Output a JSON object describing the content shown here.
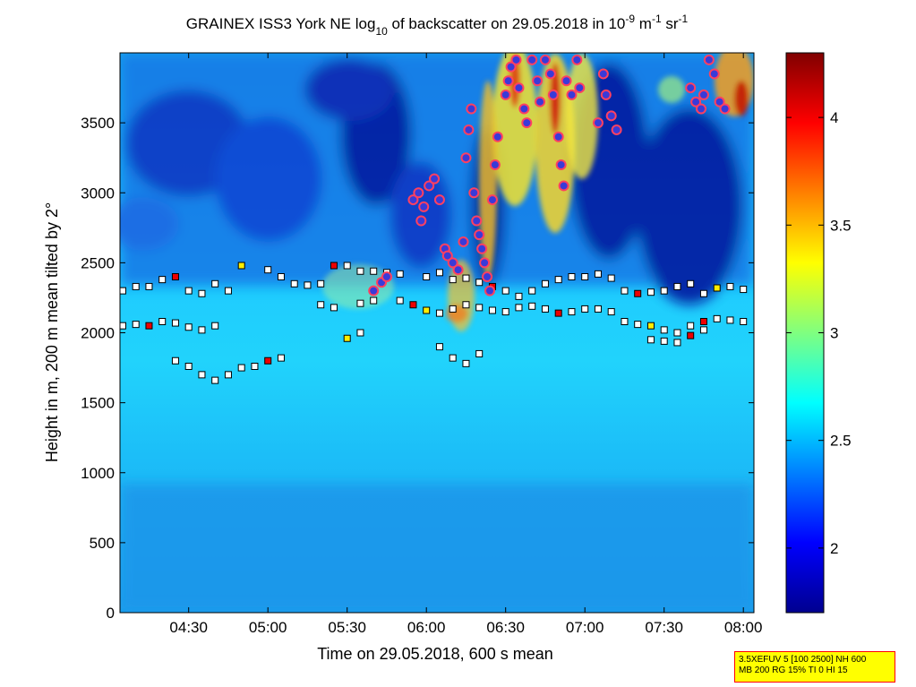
{
  "chart_data": {
    "type": "heatmap",
    "title": {
      "prefix": "GRAINEX ISS3 York NE log",
      "sub": "10",
      "middle": " of backscatter on 29.05.2018 in 10",
      "sup1": "-9",
      "unit_m": " m",
      "sup2": "-1",
      "unit_sr": " sr",
      "sup3": "-1"
    },
    "xlabel": "Time on 29.05.2018, 600 s mean",
    "ylabel": "Height in m, 200 m mean tilted by 2°",
    "xlim": [
      "04:04",
      "08:04"
    ],
    "ylim": [
      0,
      4000
    ],
    "x_ticks": [
      "04:30",
      "05:00",
      "05:30",
      "06:00",
      "06:30",
      "07:00",
      "07:30",
      "08:00"
    ],
    "y_ticks": [
      0,
      500,
      1000,
      1500,
      2000,
      2500,
      3000,
      3500
    ],
    "colorbar": {
      "colormap": "jet",
      "range": [
        1.7,
        4.3
      ],
      "ticks": [
        "2",
        "2.5",
        "3",
        "3.5",
        "4"
      ]
    },
    "colors": {
      "background_field": "#1ec8ff",
      "low_region": "#1e9ff0",
      "dark_region": "#06109a",
      "cloud": "#fbe11e",
      "cloud_core": "#c00000",
      "marker_fill": "#ffffff",
      "marker_edge": "#000000",
      "marker_red": "#ee0000",
      "marker_yellow": "#ffee00",
      "circle_fill": "#3a3ad8",
      "circle_edge": "#ff4060"
    },
    "series": [
      {
        "marker": "square",
        "points": [
          [
            "04:05",
            2300
          ],
          [
            "04:10",
            2330
          ],
          [
            "04:15",
            2330
          ],
          [
            "04:20",
            2380
          ],
          [
            "04:25",
            2400
          ],
          [
            "04:30",
            2300
          ],
          [
            "04:35",
            2280
          ],
          [
            "04:40",
            2350
          ],
          [
            "04:45",
            2300
          ],
          [
            "04:50",
            2480
          ],
          [
            "05:00",
            2450
          ],
          [
            "05:05",
            2400
          ],
          [
            "05:10",
            2350
          ],
          [
            "05:15",
            2340
          ],
          [
            "05:20",
            2350
          ],
          [
            "05:25",
            2480
          ],
          [
            "05:30",
            2480
          ],
          [
            "05:35",
            2440
          ],
          [
            "05:40",
            2440
          ],
          [
            "05:45",
            2430
          ],
          [
            "05:50",
            2420
          ],
          [
            "06:00",
            2400
          ],
          [
            "06:05",
            2430
          ],
          [
            "06:10",
            2380
          ],
          [
            "06:15",
            2390
          ],
          [
            "06:20",
            2360
          ],
          [
            "06:25",
            2330
          ],
          [
            "06:30",
            2300
          ],
          [
            "06:35",
            2260
          ],
          [
            "06:40",
            2300
          ],
          [
            "06:45",
            2350
          ],
          [
            "06:50",
            2380
          ],
          [
            "06:55",
            2400
          ],
          [
            "07:00",
            2400
          ],
          [
            "07:05",
            2420
          ],
          [
            "07:10",
            2390
          ],
          [
            "07:15",
            2300
          ],
          [
            "07:20",
            2280
          ],
          [
            "07:25",
            2290
          ],
          [
            "07:30",
            2300
          ],
          [
            "07:35",
            2330
          ],
          [
            "07:40",
            2350
          ],
          [
            "07:45",
            2280
          ],
          [
            "07:50",
            2320
          ],
          [
            "07:55",
            2330
          ],
          [
            "08:00",
            2310
          ],
          [
            "04:05",
            2050
          ],
          [
            "04:10",
            2060
          ],
          [
            "04:15",
            2050
          ],
          [
            "04:20",
            2080
          ],
          [
            "04:25",
            2070
          ],
          [
            "04:30",
            2040
          ],
          [
            "04:35",
            2020
          ],
          [
            "04:40",
            2050
          ],
          [
            "05:20",
            2200
          ],
          [
            "05:25",
            2180
          ],
          [
            "05:35",
            2210
          ],
          [
            "05:40",
            2230
          ],
          [
            "05:50",
            2230
          ],
          [
            "05:55",
            2200
          ],
          [
            "06:00",
            2160
          ],
          [
            "06:05",
            2140
          ],
          [
            "06:10",
            2170
          ],
          [
            "06:15",
            2200
          ],
          [
            "06:20",
            2180
          ],
          [
            "06:25",
            2160
          ],
          [
            "06:30",
            2150
          ],
          [
            "06:35",
            2180
          ],
          [
            "06:40",
            2190
          ],
          [
            "06:45",
            2170
          ],
          [
            "06:50",
            2140
          ],
          [
            "06:55",
            2150
          ],
          [
            "07:00",
            2170
          ],
          [
            "07:05",
            2170
          ],
          [
            "07:10",
            2150
          ],
          [
            "07:15",
            2080
          ],
          [
            "07:20",
            2060
          ],
          [
            "07:25",
            2050
          ],
          [
            "07:30",
            2020
          ],
          [
            "07:35",
            2000
          ],
          [
            "07:40",
            2050
          ],
          [
            "07:45",
            2080
          ],
          [
            "07:50",
            2100
          ],
          [
            "07:55",
            2090
          ],
          [
            "08:00",
            2080
          ],
          [
            "04:25",
            1800
          ],
          [
            "04:30",
            1760
          ],
          [
            "04:35",
            1700
          ],
          [
            "04:40",
            1660
          ],
          [
            "04:45",
            1700
          ],
          [
            "04:50",
            1750
          ],
          [
            "04:55",
            1760
          ],
          [
            "05:00",
            1800
          ],
          [
            "05:05",
            1820
          ],
          [
            "05:30",
            1960
          ],
          [
            "05:35",
            2000
          ],
          [
            "06:05",
            1900
          ],
          [
            "06:10",
            1820
          ],
          [
            "06:15",
            1780
          ],
          [
            "06:20",
            1850
          ],
          [
            "07:25",
            1950
          ],
          [
            "07:30",
            1940
          ],
          [
            "07:35",
            1930
          ],
          [
            "07:40",
            1980
          ],
          [
            "07:45",
            2020
          ]
        ]
      },
      {
        "marker": "circle",
        "points": [
          [
            "05:43",
            2360
          ],
          [
            "05:45",
            2400
          ],
          [
            "05:40",
            2300
          ],
          [
            "05:55",
            2950
          ],
          [
            "05:57",
            3000
          ],
          [
            "05:59",
            2900
          ],
          [
            "06:01",
            3050
          ],
          [
            "06:03",
            3100
          ],
          [
            "06:05",
            2950
          ],
          [
            "05:58",
            2800
          ],
          [
            "06:07",
            2600
          ],
          [
            "06:08",
            2550
          ],
          [
            "06:10",
            2500
          ],
          [
            "06:12",
            2450
          ],
          [
            "06:14",
            2650
          ],
          [
            "06:15",
            3250
          ],
          [
            "06:16",
            3450
          ],
          [
            "06:17",
            3600
          ],
          [
            "06:18",
            3000
          ],
          [
            "06:19",
            2800
          ],
          [
            "06:20",
            2700
          ],
          [
            "06:21",
            2600
          ],
          [
            "06:22",
            2500
          ],
          [
            "06:23",
            2400
          ],
          [
            "06:24",
            2300
          ],
          [
            "06:25",
            2950
          ],
          [
            "06:26",
            3200
          ],
          [
            "06:27",
            3400
          ],
          [
            "06:30",
            3700
          ],
          [
            "06:31",
            3800
          ],
          [
            "06:32",
            3900
          ],
          [
            "06:34",
            3950
          ],
          [
            "06:35",
            3750
          ],
          [
            "06:37",
            3600
          ],
          [
            "06:38",
            3500
          ],
          [
            "06:40",
            3950
          ],
          [
            "06:42",
            3800
          ],
          [
            "06:43",
            3650
          ],
          [
            "06:45",
            3950
          ],
          [
            "06:47",
            3850
          ],
          [
            "06:48",
            3700
          ],
          [
            "06:50",
            3400
          ],
          [
            "06:51",
            3200
          ],
          [
            "06:52",
            3050
          ],
          [
            "06:53",
            3800
          ],
          [
            "06:55",
            3700
          ],
          [
            "06:57",
            3950
          ],
          [
            "06:58",
            3750
          ],
          [
            "07:05",
            3500
          ],
          [
            "07:07",
            3850
          ],
          [
            "07:08",
            3700
          ],
          [
            "07:10",
            3550
          ],
          [
            "07:12",
            3450
          ],
          [
            "07:40",
            3750
          ],
          [
            "07:42",
            3650
          ],
          [
            "07:44",
            3600
          ],
          [
            "07:45",
            3700
          ],
          [
            "07:47",
            3950
          ],
          [
            "07:49",
            3850
          ],
          [
            "07:51",
            3650
          ],
          [
            "07:53",
            3600
          ]
        ]
      }
    ]
  },
  "info_box": {
    "line1": "3.5XEFUV 5 [100 2500] NH 600",
    "line2": "MB 200 RG 15% TI 0 HI 15"
  }
}
